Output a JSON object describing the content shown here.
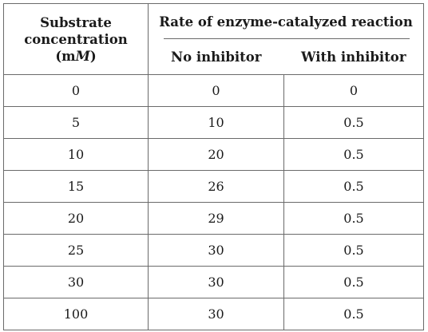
{
  "table": {
    "header": {
      "substrate_line1": "Substrate",
      "substrate_line2": "concentration",
      "substrate_unit_open": "(m",
      "substrate_unit_italic": "M",
      "substrate_unit_close": ")",
      "rate_title": "Rate of enzyme-catalyzed reaction",
      "no_inhibitor": "No inhibitor",
      "with_inhibitor": "With inhibitor"
    },
    "rows": [
      {
        "substrate": "0",
        "no_inhibitor": "0",
        "with_inhibitor": "0"
      },
      {
        "substrate": "5",
        "no_inhibitor": "10",
        "with_inhibitor": "0.5"
      },
      {
        "substrate": "10",
        "no_inhibitor": "20",
        "with_inhibitor": "0.5"
      },
      {
        "substrate": "15",
        "no_inhibitor": "26",
        "with_inhibitor": "0.5"
      },
      {
        "substrate": "20",
        "no_inhibitor": "29",
        "with_inhibitor": "0.5"
      },
      {
        "substrate": "25",
        "no_inhibitor": "30",
        "with_inhibitor": "0.5"
      },
      {
        "substrate": "30",
        "no_inhibitor": "30",
        "with_inhibitor": "0.5"
      },
      {
        "substrate": "100",
        "no_inhibitor": "30",
        "with_inhibitor": "0.5"
      }
    ]
  }
}
